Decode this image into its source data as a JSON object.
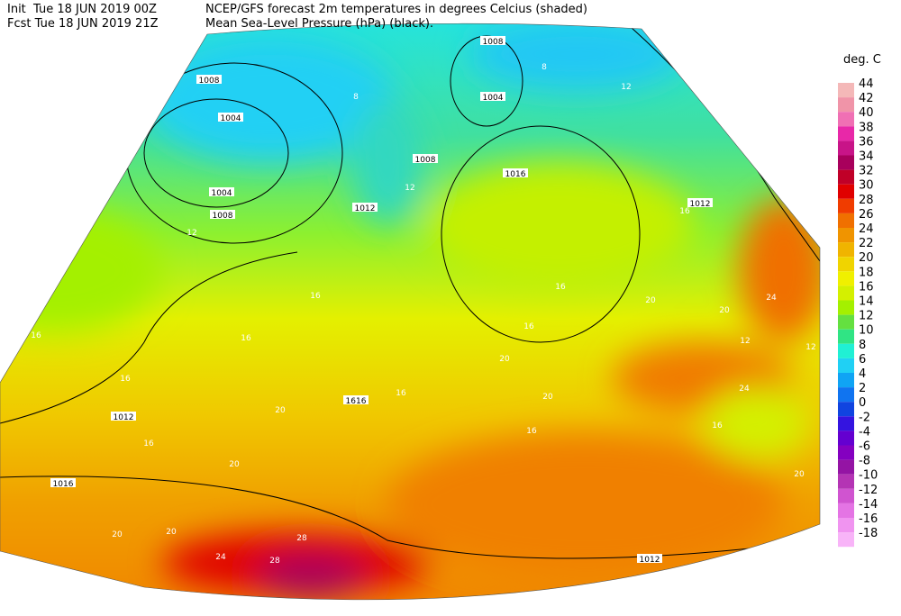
{
  "header": {
    "init": "Init  Tue 18 JUN 2019 00Z",
    "fcst": "Fcst Tue 18 JUN 2019 21Z",
    "title_line1": "NCEP/GFS forecast 2m temperatures in degrees Celcius (shaded)",
    "title_line2": "Mean Sea-Level Pressure (hPa) (black)."
  },
  "legend": {
    "unit": "deg. C",
    "levels": [
      {
        "label": "44",
        "color": "#f4b8b8"
      },
      {
        "label": "42",
        "color": "#f094a8"
      },
      {
        "label": "40",
        "color": "#f070b4"
      },
      {
        "label": "38",
        "color": "#e828a8"
      },
      {
        "label": "36",
        "color": "#c81488"
      },
      {
        "label": "34",
        "color": "#a8005c"
      },
      {
        "label": "32",
        "color": "#c00028"
      },
      {
        "label": "30",
        "color": "#e00000"
      },
      {
        "label": "28",
        "color": "#f03c00"
      },
      {
        "label": "26",
        "color": "#f07000"
      },
      {
        "label": "24",
        "color": "#f09400"
      },
      {
        "label": "22",
        "color": "#f0b400"
      },
      {
        "label": "20",
        "color": "#f0d400"
      },
      {
        "label": "18",
        "color": "#f0f000"
      },
      {
        "label": "16",
        "color": "#d4f000"
      },
      {
        "label": "14",
        "color": "#a4f000"
      },
      {
        "label": "12",
        "color": "#64e040"
      },
      {
        "label": "10",
        "color": "#30e484"
      },
      {
        "label": "8",
        "color": "#20f0d4"
      },
      {
        "label": "6",
        "color": "#20d0f4"
      },
      {
        "label": "4",
        "color": "#10a4f4"
      },
      {
        "label": "2",
        "color": "#1074f0"
      },
      {
        "label": "0",
        "color": "#1044e0"
      },
      {
        "label": "-2",
        "color": "#3414e0"
      },
      {
        "label": "-4",
        "color": "#6400d0"
      },
      {
        "label": "-6",
        "color": "#8400c0"
      },
      {
        "label": "-8",
        "color": "#9414a4"
      },
      {
        "label": "-10",
        "color": "#b434b4"
      },
      {
        "label": "-12",
        "color": "#d054d0"
      },
      {
        "label": "-14",
        "color": "#e474e4"
      },
      {
        "label": "-16",
        "color": "#f094f0"
      },
      {
        "label": "-18",
        "color": "#f8b4f8"
      }
    ]
  },
  "map": {
    "isobar_labels": [
      "1008",
      "1004",
      "1004",
      "1008",
      "1008",
      "1004",
      "1008",
      "1012",
      "1016",
      "1012",
      "1012",
      "1016",
      "1012",
      "1616"
    ],
    "temperature_labels": [
      "8",
      "8",
      "12",
      "12",
      "12",
      "16",
      "16",
      "16",
      "16",
      "16",
      "16",
      "16",
      "16",
      "20",
      "20",
      "20",
      "20",
      "20",
      "20",
      "20",
      "24",
      "24",
      "28",
      "28",
      "12",
      "12",
      "16",
      "16",
      "20",
      "24",
      "16",
      "20"
    ]
  }
}
